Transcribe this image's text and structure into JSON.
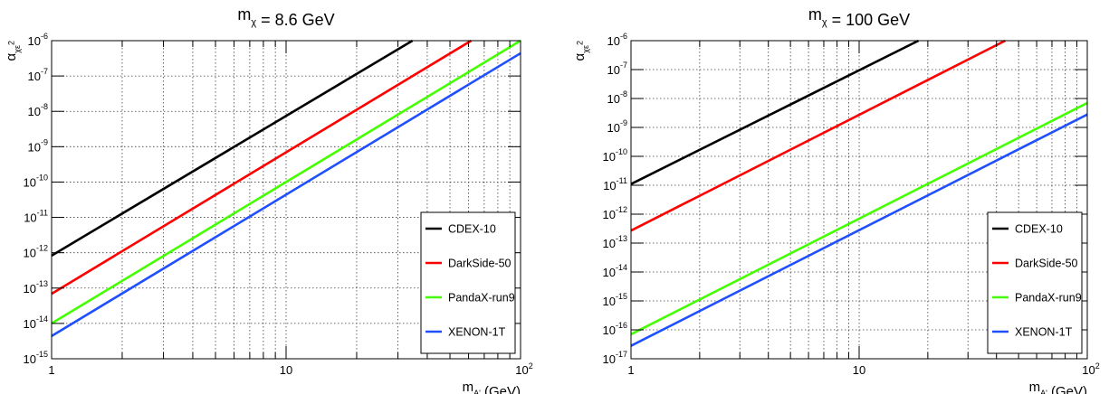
{
  "chart_data": [
    {
      "type": "line",
      "title": "m_χ = 8.6 GeV",
      "xlabel": "m_A' (GeV)",
      "ylabel": "α_χ ε²",
      "xscale": "log",
      "yscale": "log",
      "xlim": [
        1,
        100
      ],
      "ylim": [
        1e-15,
        1e-06
      ],
      "grid": true,
      "legend_position": "bottom-right",
      "x_tick_labels": [
        "1",
        "10",
        "10^2"
      ],
      "y_tick_labels": [
        "10^-15",
        "10^-14",
        "10^-13",
        "10^-12",
        "10^-11",
        "10^-10",
        "10^-9",
        "10^-8",
        "10^-7",
        "10^-6"
      ],
      "series": [
        {
          "name": "CDEX-10",
          "color": "#000000",
          "x": [
            1,
            34.6
          ],
          "y": [
            8.3e-13,
            1e-06
          ]
        },
        {
          "name": "DarkSide-50",
          "color": "#ff0000",
          "x": [
            1,
            61.6
          ],
          "y": [
            6.9e-14,
            1e-06
          ]
        },
        {
          "name": "PandaX-run9",
          "color": "#44ff00",
          "x": [
            1,
            100
          ],
          "y": [
            1e-14,
            1e-06
          ]
        },
        {
          "name": "XENON-1T",
          "color": "#1f4fff",
          "x": [
            1,
            100
          ],
          "y": [
            4.4e-15,
            4.4e-07
          ]
        }
      ]
    },
    {
      "type": "line",
      "title": "m_χ = 100 GeV",
      "xlabel": "m_A' (GeV)",
      "ylabel": "α_χ ε²",
      "xscale": "log",
      "yscale": "log",
      "xlim": [
        1,
        100
      ],
      "ylim": [
        1e-17,
        1e-06
      ],
      "grid": true,
      "legend_position": "bottom-right",
      "x_tick_labels": [
        "1",
        "10",
        "10^2"
      ],
      "y_tick_labels": [
        "10^-17",
        "10^-16",
        "10^-15",
        "10^-14",
        "10^-13",
        "10^-12",
        "10^-11",
        "10^-10",
        "10^-9",
        "10^-8",
        "10^-7",
        "10^-6"
      ],
      "series": [
        {
          "name": "CDEX-10",
          "color": "#000000",
          "x": [
            1,
            18.2
          ],
          "y": [
            1.1e-11,
            1e-06
          ]
        },
        {
          "name": "DarkSide-50",
          "color": "#ff0000",
          "x": [
            1,
            43.7
          ],
          "y": [
            2.7e-13,
            1e-06
          ]
        },
        {
          "name": "PandaX-run9",
          "color": "#44ff00",
          "x": [
            1,
            100
          ],
          "y": [
            7e-17,
            7e-09
          ]
        },
        {
          "name": "XENON-1T",
          "color": "#1f4fff",
          "x": [
            1,
            100
          ],
          "y": [
            2.8e-17,
            2.8e-09
          ]
        }
      ]
    }
  ]
}
